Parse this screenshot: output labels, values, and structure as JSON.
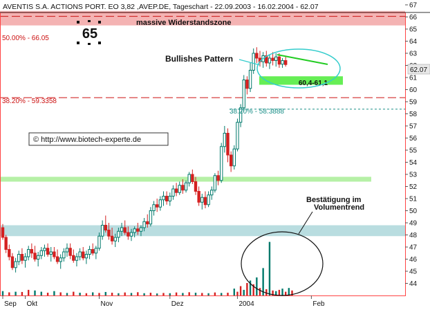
{
  "chart_data": {
    "type": "candlestick",
    "title": "AVENTIS S.A. ACTIONS PORT. EO 3,82 ,AVEP.DE, Tageschart - 22.09.2003 - 16.02.2004 - 62.07",
    "last_value": "62.07",
    "ylim": [
      43,
      67
    ],
    "y_ticks": [
      44,
      45,
      46,
      47,
      48,
      49,
      50,
      51,
      52,
      53,
      54,
      55,
      56,
      57,
      58,
      59,
      60,
      61,
      62,
      63,
      64,
      65,
      66,
      67
    ],
    "x_tick_labels": [
      {
        "label": "Sep",
        "index": 0
      },
      {
        "label": "Okt",
        "index": 7
      },
      {
        "label": "Nov",
        "index": 30
      },
      {
        "label": "Dez",
        "index": 52
      },
      {
        "label": "2004",
        "index": 73
      },
      {
        "label": "Feb",
        "index": 96
      }
    ],
    "candles": [
      [
        48.6,
        48.9,
        47.6,
        47.8
      ],
      [
        47.8,
        48.0,
        46.5,
        46.8
      ],
      [
        46.8,
        47.2,
        45.9,
        46.2
      ],
      [
        46.2,
        46.5,
        45.1,
        45.3
      ],
      [
        45.3,
        46.1,
        44.9,
        45.8
      ],
      [
        45.8,
        46.7,
        45.5,
        46.4
      ],
      [
        46.4,
        46.9,
        45.6,
        45.9
      ],
      [
        45.9,
        46.5,
        45.3,
        46.2
      ],
      [
        46.2,
        47.1,
        45.9,
        46.8
      ],
      [
        46.8,
        47.3,
        46.1,
        46.5
      ],
      [
        46.5,
        47.1,
        45.8,
        46.0
      ],
      [
        46.0,
        46.6,
        45.4,
        46.3
      ],
      [
        46.3,
        47.0,
        46.0,
        46.7
      ],
      [
        46.7,
        47.2,
        46.2,
        46.9
      ],
      [
        46.9,
        47.3,
        46.2,
        46.4
      ],
      [
        46.4,
        47.0,
        45.8,
        46.6
      ],
      [
        46.6,
        47.0,
        46.0,
        46.2
      ],
      [
        46.2,
        46.8,
        45.6,
        45.8
      ],
      [
        45.8,
        46.4,
        45.2,
        46.1
      ],
      [
        46.1,
        46.9,
        45.8,
        46.6
      ],
      [
        46.6,
        47.3,
        46.2,
        46.9
      ],
      [
        46.9,
        47.3,
        46.0,
        46.3
      ],
      [
        46.3,
        46.8,
        45.7,
        45.9
      ],
      [
        45.9,
        46.5,
        45.4,
        46.2
      ],
      [
        46.2,
        46.9,
        45.9,
        46.6
      ],
      [
        46.6,
        47.0,
        45.9,
        46.1
      ],
      [
        46.1,
        46.7,
        45.6,
        46.4
      ],
      [
        46.4,
        47.1,
        46.0,
        46.8
      ],
      [
        46.8,
        47.3,
        46.3,
        46.5
      ],
      [
        46.5,
        47.1,
        46.0,
        46.9
      ],
      [
        46.9,
        48.2,
        46.7,
        47.9
      ],
      [
        47.9,
        49.2,
        47.6,
        48.8
      ],
      [
        48.8,
        49.6,
        48.2,
        48.4
      ],
      [
        48.4,
        49.0,
        47.6,
        47.9
      ],
      [
        47.9,
        48.6,
        47.2,
        47.5
      ],
      [
        47.5,
        48.1,
        47.0,
        47.8
      ],
      [
        47.8,
        48.6,
        47.4,
        48.3
      ],
      [
        48.3,
        49.0,
        47.9,
        48.6
      ],
      [
        48.6,
        49.2,
        48.0,
        48.2
      ],
      [
        48.2,
        48.7,
        47.6,
        47.9
      ],
      [
        47.9,
        48.5,
        47.5,
        48.2
      ],
      [
        48.2,
        48.7,
        47.8,
        48.5
      ],
      [
        48.5,
        49.0,
        48.0,
        48.3
      ],
      [
        48.3,
        48.8,
        47.9,
        48.6
      ],
      [
        48.6,
        49.4,
        48.3,
        49.1
      ],
      [
        49.1,
        49.7,
        48.6,
        48.9
      ],
      [
        48.9,
        50.3,
        48.7,
        50.0
      ],
      [
        50.0,
        50.8,
        49.6,
        50.5
      ],
      [
        50.5,
        51.0,
        49.9,
        50.3
      ],
      [
        50.3,
        51.2,
        50.0,
        50.9
      ],
      [
        50.9,
        51.6,
        50.4,
        51.2
      ],
      [
        51.2,
        51.6,
        50.5,
        50.8
      ],
      [
        50.8,
        51.5,
        50.4,
        51.2
      ],
      [
        51.2,
        52.1,
        50.9,
        51.8
      ],
      [
        51.8,
        52.3,
        51.2,
        51.5
      ],
      [
        51.5,
        52.4,
        51.3,
        52.1
      ],
      [
        52.1,
        52.6,
        51.4,
        51.7
      ],
      [
        51.7,
        52.5,
        51.5,
        52.3
      ],
      [
        52.3,
        53.2,
        52.0,
        53.0
      ],
      [
        53.0,
        53.4,
        52.2,
        52.4
      ],
      [
        52.4,
        52.8,
        51.3,
        51.6
      ],
      [
        51.6,
        52.0,
        50.4,
        50.7
      ],
      [
        50.7,
        51.4,
        50.1,
        51.1
      ],
      [
        51.1,
        51.6,
        50.2,
        50.5
      ],
      [
        50.5,
        51.6,
        50.3,
        51.3
      ],
      [
        51.3,
        52.0,
        50.9,
        51.7
      ],
      [
        51.7,
        53.1,
        51.5,
        52.9
      ],
      [
        52.9,
        53.3,
        52.1,
        52.5
      ],
      [
        52.5,
        55.6,
        52.3,
        55.3
      ],
      [
        55.3,
        57.0,
        54.8,
        56.4
      ],
      [
        56.4,
        56.8,
        54.0,
        54.6
      ],
      [
        54.6,
        54.9,
        53.2,
        53.7
      ],
      [
        53.7,
        55.4,
        53.4,
        55.1
      ],
      [
        55.1,
        57.6,
        54.9,
        57.3
      ],
      [
        57.3,
        58.8,
        56.9,
        58.5
      ],
      [
        58.5,
        61.2,
        58.2,
        60.8
      ],
      [
        60.8,
        61.1,
        59.6,
        60.1
      ],
      [
        60.1,
        62.2,
        59.8,
        61.6
      ],
      [
        61.6,
        63.4,
        61.3,
        63.0
      ],
      [
        63.0,
        63.5,
        62.2,
        62.6
      ],
      [
        62.6,
        63.2,
        61.9,
        62.3
      ],
      [
        62.3,
        63.1,
        61.8,
        62.8
      ],
      [
        62.8,
        63.2,
        61.9,
        62.2
      ],
      [
        62.2,
        62.9,
        61.7,
        62.6
      ],
      [
        62.6,
        63.1,
        62.0,
        62.4
      ],
      [
        62.4,
        63.0,
        61.9,
        62.7
      ],
      [
        62.7,
        63.0,
        61.8,
        62.1
      ],
      [
        62.1,
        62.6,
        61.8,
        62.4
      ],
      [
        62.4,
        62.8,
        61.9,
        62.07
      ]
    ],
    "volume": [
      {
        "i": 0,
        "h": 0.35,
        "c": "g"
      },
      {
        "i": 2,
        "h": 0.25,
        "c": "r"
      },
      {
        "i": 4,
        "h": 0.3,
        "c": "g"
      },
      {
        "i": 6,
        "h": 0.28,
        "c": "r"
      },
      {
        "i": 8,
        "h": 0.45,
        "c": "r"
      },
      {
        "i": 10,
        "h": 0.4,
        "c": "g"
      },
      {
        "i": 12,
        "h": 0.3,
        "c": "g"
      },
      {
        "i": 14,
        "h": 0.22,
        "c": "r"
      },
      {
        "i": 16,
        "h": 0.35,
        "c": "g"
      },
      {
        "i": 18,
        "h": 0.25,
        "c": "r"
      },
      {
        "i": 20,
        "h": 0.2,
        "c": "g"
      },
      {
        "i": 22,
        "h": 0.3,
        "c": "r"
      },
      {
        "i": 24,
        "h": 0.22,
        "c": "g"
      },
      {
        "i": 26,
        "h": 0.18,
        "c": "r"
      },
      {
        "i": 28,
        "h": 0.25,
        "c": "g"
      },
      {
        "i": 30,
        "h": 0.2,
        "c": "r"
      },
      {
        "i": 32,
        "h": 0.28,
        "c": "g"
      },
      {
        "i": 34,
        "h": 0.22,
        "c": "r"
      },
      {
        "i": 36,
        "h": 0.18,
        "c": "g"
      },
      {
        "i": 38,
        "h": 0.24,
        "c": "r"
      },
      {
        "i": 40,
        "h": 0.2,
        "c": "g"
      },
      {
        "i": 42,
        "h": 0.26,
        "c": "r"
      },
      {
        "i": 44,
        "h": 0.18,
        "c": "g"
      },
      {
        "i": 46,
        "h": 0.22,
        "c": "r"
      },
      {
        "i": 48,
        "h": 0.16,
        "c": "g"
      },
      {
        "i": 50,
        "h": 0.2,
        "c": "r"
      },
      {
        "i": 52,
        "h": 0.18,
        "c": "g"
      },
      {
        "i": 54,
        "h": 0.24,
        "c": "r"
      },
      {
        "i": 56,
        "h": 0.2,
        "c": "g"
      },
      {
        "i": 58,
        "h": 0.26,
        "c": "r"
      },
      {
        "i": 60,
        "h": 0.22,
        "c": "g"
      },
      {
        "i": 62,
        "h": 0.2,
        "c": "r"
      },
      {
        "i": 64,
        "h": 0.18,
        "c": "g"
      },
      {
        "i": 66,
        "h": 0.24,
        "c": "r"
      },
      {
        "i": 68,
        "h": 0.2,
        "c": "g"
      },
      {
        "i": 70,
        "h": 0.22,
        "c": "r"
      },
      {
        "i": 72,
        "h": 0.55,
        "c": "g"
      },
      {
        "i": 73,
        "h": 0.3,
        "c": "r"
      },
      {
        "i": 74,
        "h": 0.75,
        "c": "r"
      },
      {
        "i": 75,
        "h": 0.45,
        "c": "g"
      },
      {
        "i": 76,
        "h": 1.0,
        "c": "r"
      },
      {
        "i": 77,
        "h": 1.2,
        "c": "g"
      },
      {
        "i": 78,
        "h": 0.9,
        "c": "r"
      },
      {
        "i": 79,
        "h": 1.45,
        "c": "g"
      },
      {
        "i": 80,
        "h": 0.6,
        "c": "r"
      },
      {
        "i": 81,
        "h": 2.2,
        "c": "g"
      },
      {
        "i": 82,
        "h": 0.5,
        "c": "r"
      },
      {
        "i": 83,
        "h": 4.3,
        "c": "g"
      },
      {
        "i": 84,
        "h": 0.4,
        "c": "r"
      },
      {
        "i": 85,
        "h": 0.35,
        "c": "g"
      },
      {
        "i": 86,
        "h": 0.45,
        "c": "r"
      },
      {
        "i": 87,
        "h": 0.55,
        "c": "g"
      },
      {
        "i": 88,
        "h": 0.3,
        "c": "r"
      },
      {
        "i": 89,
        "h": 0.6,
        "c": "g"
      },
      {
        "i": 90,
        "h": 0.4,
        "c": "r"
      }
    ],
    "fib_levels": [
      {
        "label": "50.00% - 66.05",
        "value": 66.05
      },
      {
        "label": "38.20% - 59.3358",
        "value": 59.3358
      }
    ],
    "fib_level_lower": {
      "label": "38.20% - 58.3888",
      "value": 58.3888
    },
    "zones": [
      {
        "label": "massive Widerstandszone",
        "from": 65.3,
        "to": 66.5,
        "color": "#f4b3b3"
      },
      {
        "label": "",
        "from": 52.4,
        "to": 52.8,
        "color": "#b6f0a6"
      },
      {
        "label": "",
        "from": 47.9,
        "to": 48.8,
        "color": "#b9dde0"
      },
      {
        "label": "60,4-61,1",
        "from": 60.4,
        "to": 61.1,
        "color": "#66ee55"
      }
    ],
    "callout_value": "65",
    "annotations": {
      "pattern": "Bullishes Pattern",
      "volume_1": "Bestätigung im",
      "volume_2": "Volumentrend",
      "copyright": "©  http://www.biotech-experte.de"
    }
  },
  "colors": {
    "up": "#00796b",
    "down": "#d42020",
    "resistance": "#cc1111",
    "fib_lower": "#1a8f88",
    "plot_border": "#ff4444",
    "trend_line": "#22cc22",
    "ellipse": "#33cccc"
  }
}
